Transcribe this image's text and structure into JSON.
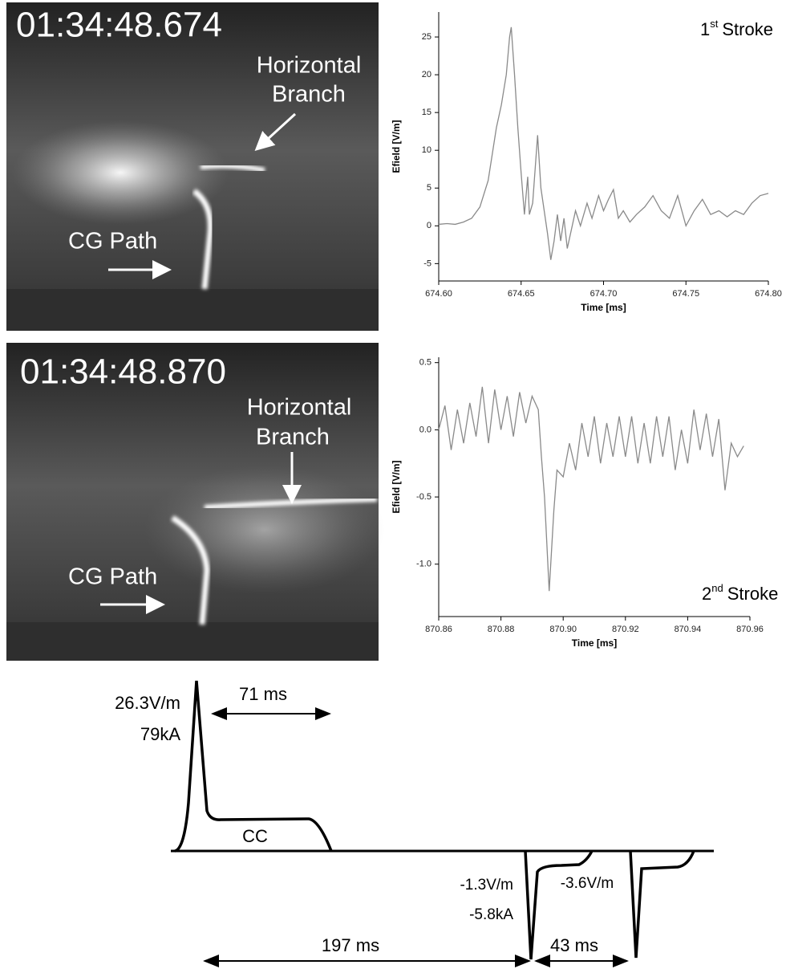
{
  "photos": [
    {
      "timestamp": "01:34:48.674",
      "branch_label": [
        "Horizontal",
        "Branch"
      ],
      "path_label": "CG Path"
    },
    {
      "timestamp": "01:34:48.870",
      "branch_label": [
        "Horizontal",
        "Branch"
      ],
      "path_label": "CG Path"
    }
  ],
  "chart_data": [
    {
      "type": "line",
      "annotation": {
        "ordinal": "1",
        "ordinal_suffix": "st",
        "text": "Stroke"
      },
      "x_label": "Time [ms]",
      "y_label": "Efield [V/m]",
      "xlim": [
        674.6,
        674.8
      ],
      "xticks": [
        {
          "value": 674.6,
          "label": "674.60"
        },
        {
          "value": 674.65,
          "label": "674.65"
        },
        {
          "value": 674.7,
          "label": "674.70"
        },
        {
          "value": 674.75,
          "label": "674.75"
        },
        {
          "value": 674.8,
          "label": "674.80"
        }
      ],
      "ylim": [
        -7.3,
        28.3
      ],
      "yticks": [
        -5,
        0,
        5,
        10,
        15,
        20,
        25
      ],
      "series": [
        {
          "color": "#8a8a8a",
          "x": [
            674.6,
            674.605,
            674.61,
            674.615,
            674.62,
            674.625,
            674.63,
            674.635,
            674.638,
            674.641,
            674.643,
            674.644,
            674.646,
            674.648,
            674.65,
            674.652,
            674.654,
            674.655,
            674.657,
            674.659,
            674.66,
            674.662,
            674.664,
            674.666,
            674.668,
            674.67,
            674.672,
            674.674,
            674.676,
            674.678,
            674.68,
            674.683,
            674.686,
            674.69,
            674.693,
            674.697,
            674.7,
            674.703,
            674.706,
            674.709,
            674.712,
            674.716,
            674.72,
            674.725,
            674.73,
            674.735,
            674.74,
            674.745,
            674.75,
            674.755,
            674.76,
            674.765,
            674.77,
            674.775,
            674.78,
            674.785,
            674.79,
            674.795,
            674.8
          ],
          "values": [
            0.2,
            0.3,
            0.2,
            0.5,
            1,
            2.5,
            6,
            13,
            16,
            20,
            25,
            26.3,
            20,
            13,
            7,
            1.5,
            6.5,
            1.5,
            3,
            9,
            12,
            5,
            2,
            -1,
            -4.5,
            -2,
            1.5,
            -2,
            1,
            -3,
            -1,
            2,
            0,
            3,
            1,
            4,
            2,
            3.5,
            4.8,
            1,
            2,
            0.5,
            1.5,
            2.5,
            4,
            2,
            1,
            4,
            0,
            2,
            3.5,
            1.5,
            2,
            1.2,
            2,
            1.5,
            3,
            4,
            4.3
          ]
        }
      ]
    },
    {
      "type": "line",
      "annotation": {
        "ordinal": "2",
        "ordinal_suffix": "nd",
        "text": "Stroke"
      },
      "x_label": "Time [ms]",
      "y_label": "Efield [V/m]",
      "xlim": [
        870.86,
        870.96
      ],
      "xticks": [
        {
          "value": 870.86,
          "label": "870.86"
        },
        {
          "value": 870.88,
          "label": "870.88"
        },
        {
          "value": 870.9,
          "label": "870.90"
        },
        {
          "value": 870.92,
          "label": "870.92"
        },
        {
          "value": 870.94,
          "label": "870.94"
        },
        {
          "value": 870.96,
          "label": "870.96"
        }
      ],
      "ylim": [
        -1.39,
        0.54
      ],
      "yticks": [
        {
          "value": -1,
          "label": "-1.0"
        },
        -0.5,
        {
          "value": 0,
          "label": "0.0"
        },
        0.5
      ],
      "series": [
        {
          "color": "#8a8a8a",
          "x": [
            870.86,
            870.862,
            870.864,
            870.866,
            870.868,
            870.87,
            870.872,
            870.874,
            870.876,
            870.878,
            870.88,
            870.882,
            870.884,
            870.886,
            870.888,
            870.89,
            870.892,
            870.893,
            870.894,
            870.8955,
            870.897,
            870.898,
            870.9,
            870.902,
            870.904,
            870.906,
            870.908,
            870.91,
            870.912,
            870.914,
            870.916,
            870.918,
            870.92,
            870.922,
            870.924,
            870.926,
            870.928,
            870.93,
            870.932,
            870.934,
            870.936,
            870.938,
            870.94,
            870.942,
            870.944,
            870.946,
            870.948,
            870.95,
            870.952,
            870.954,
            870.956,
            870.958
          ],
          "values": [
            0,
            0.18,
            -0.15,
            0.15,
            -0.1,
            0.2,
            -0.05,
            0.32,
            -0.1,
            0.3,
            0,
            0.25,
            -0.05,
            0.28,
            0.05,
            0.25,
            0.15,
            -0.2,
            -0.5,
            -1.2,
            -0.6,
            -0.3,
            -0.35,
            -0.1,
            -0.3,
            0.05,
            -0.2,
            0.1,
            -0.25,
            0.05,
            -0.2,
            0.1,
            -0.2,
            0.1,
            -0.25,
            0.05,
            -0.25,
            0.1,
            -0.2,
            0.1,
            -0.3,
            0,
            -0.25,
            0.15,
            -0.15,
            0.12,
            -0.2,
            0.08,
            -0.45,
            -0.1,
            -0.2,
            -0.12
          ]
        }
      ]
    }
  ],
  "schematic": {
    "peak_field": "26.3V/m",
    "peak_current": "79kA",
    "cc_duration": "71 ms",
    "cc_label": "CC",
    "second_field": "-1.3V/m",
    "second_current": "-5.8kA",
    "third_field": "-3.6V/m",
    "interval_1": "197 ms",
    "interval_2": "43 ms"
  }
}
